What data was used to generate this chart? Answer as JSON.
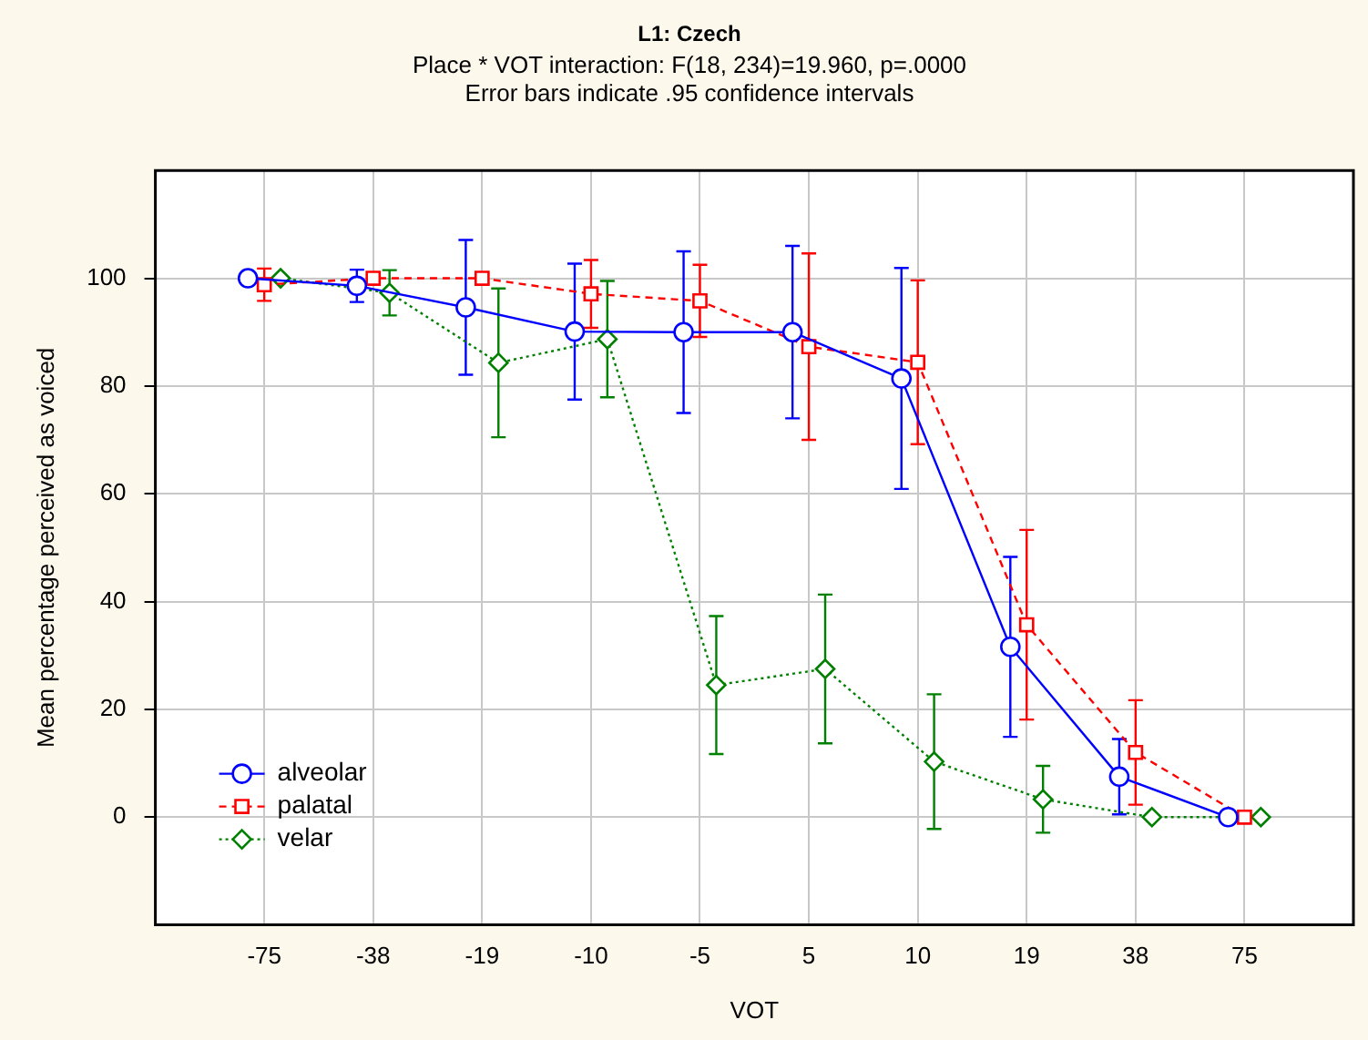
{
  "chart_data": {
    "type": "line",
    "title": "L1: Czech",
    "subtitle": "Place * VOT interaction: F(18, 234)=19.960, p=.0000",
    "annotations": [
      "Error bars indicate .95 confidence intervals"
    ],
    "xlabel": "VOT",
    "ylabel": "Mean percentage perceived as voiced",
    "categories": [
      "-75",
      "-38",
      "-19",
      "-10",
      "-5",
      "5",
      "10",
      "19",
      "38",
      "75"
    ],
    "series": [
      {
        "name": "alveolar",
        "color": "#0000ff",
        "marker": "circle",
        "line_style": "solid",
        "values": [
          100,
          98.6,
          94.6,
          90.1,
          90,
          90,
          81.4,
          31.6,
          7.5,
          0
        ],
        "errors": [
          null,
          3,
          12.5,
          12.6,
          15,
          16,
          20.5,
          16.7,
          7,
          null
        ]
      },
      {
        "name": "palatal",
        "color": "#ff0000",
        "marker": "square",
        "line_style": "dashed",
        "values": [
          98.8,
          100,
          100,
          97.1,
          95.8,
          87.3,
          84.4,
          35.7,
          12,
          0
        ],
        "errors": [
          3,
          null,
          null,
          6.3,
          6.7,
          17.3,
          15.2,
          17.6,
          9.7,
          null
        ]
      },
      {
        "name": "velar",
        "color": "#008000",
        "marker": "diamond",
        "line_style": "dotted",
        "values": [
          100,
          97.3,
          84.3,
          88.7,
          24.5,
          27.5,
          10.3,
          3.3,
          0,
          0
        ],
        "errors": [
          null,
          4.2,
          13.8,
          10.8,
          12.8,
          13.8,
          12.5,
          6.2,
          null,
          null
        ]
      }
    ],
    "ylim": [
      -20,
      120
    ],
    "yticks": [
      0,
      20,
      40,
      60,
      80,
      100
    ],
    "grid": true,
    "legend": "bottom left"
  }
}
